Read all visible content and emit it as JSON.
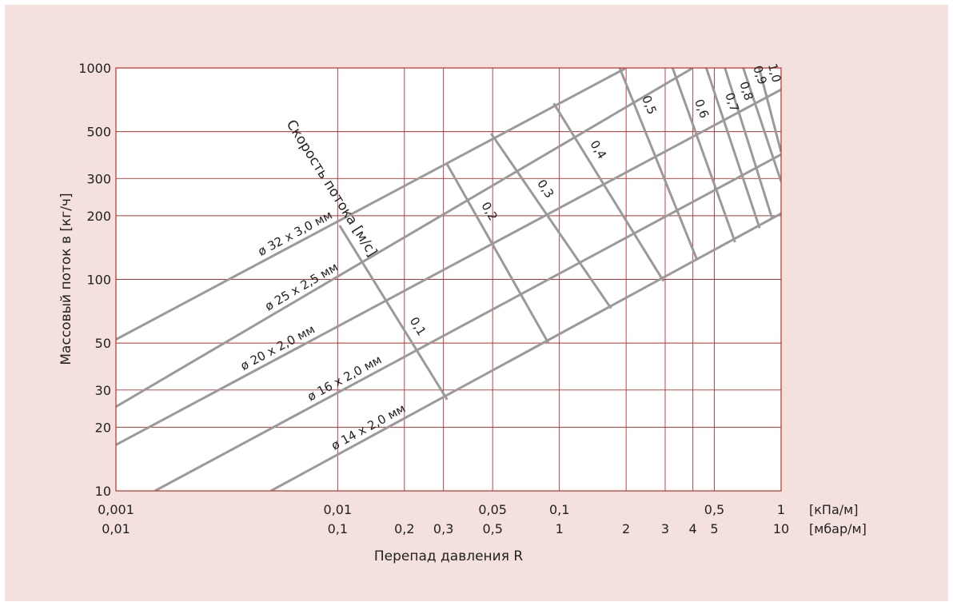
{
  "chart_data": {
    "type": "line",
    "xscale": "log",
    "yscale": "log",
    "xlim": [
      0.001,
      1
    ],
    "ylim": [
      10,
      1000
    ],
    "ylabel": "Массовый поток в [кг/ч]",
    "xlabel": "Перепад давления R",
    "velocity_axis_label": "Скорость потока [м/с]",
    "x_units": {
      "kpa": "[кПа/м]",
      "mbar": "[мбар/м]"
    },
    "y_ticks": [
      {
        "v": 10,
        "label": "10"
      },
      {
        "v": 20,
        "label": "20"
      },
      {
        "v": 30,
        "label": "30"
      },
      {
        "v": 50,
        "label": "50"
      },
      {
        "v": 100,
        "label": "100"
      },
      {
        "v": 200,
        "label": "200"
      },
      {
        "v": 300,
        "label": "300"
      },
      {
        "v": 500,
        "label": "500"
      },
      {
        "v": 1000,
        "label": "1000"
      }
    ],
    "x_ticks": [
      {
        "v": 0.001,
        "kpa": "0,001",
        "mbar": "0,01"
      },
      {
        "v": 0.01,
        "kpa": "0,01",
        "mbar": "0,1"
      },
      {
        "v": 0.02,
        "kpa": "",
        "mbar": "0,2"
      },
      {
        "v": 0.03,
        "kpa": "",
        "mbar": "0,3"
      },
      {
        "v": 0.05,
        "kpa": "0,05",
        "mbar": "0,5"
      },
      {
        "v": 0.1,
        "kpa": "0,1",
        "mbar": "1"
      },
      {
        "v": 0.2,
        "kpa": "",
        "mbar": "2"
      },
      {
        "v": 0.3,
        "kpa": "",
        "mbar": "3"
      },
      {
        "v": 0.4,
        "kpa": "",
        "mbar": "4"
      },
      {
        "v": 0.5,
        "kpa": "0,5",
        "mbar": "5"
      },
      {
        "v": 1,
        "kpa": "1",
        "mbar": "10"
      }
    ],
    "pipes": [
      {
        "label": "ø 32 x 3,0 мм",
        "points": [
          [
            0.001,
            52
          ],
          [
            0.2,
            1000
          ]
        ]
      },
      {
        "label": "ø 25 x 2,5 мм",
        "points": [
          [
            0.001,
            25
          ],
          [
            0.4,
            1000
          ]
        ]
      },
      {
        "label": "ø 20 x 2,0 мм",
        "points": [
          [
            0.001,
            16.5
          ],
          [
            1,
            790
          ]
        ]
      },
      {
        "label": "ø 16 x 2,0 мм",
        "points": [
          [
            0.0015,
            10
          ],
          [
            1,
            390
          ]
        ]
      },
      {
        "label": "ø 14 x 2,0 мм",
        "points": [
          [
            0.005,
            10
          ],
          [
            1,
            205
          ]
        ]
      }
    ],
    "velocities": [
      {
        "label": "0,1",
        "points": [
          [
            0.0102,
            180
          ],
          [
            0.0312,
            27
          ]
        ]
      },
      {
        "label": "0,2",
        "points": [
          [
            0.0312,
            350
          ],
          [
            0.0892,
            50
          ]
        ]
      },
      {
        "label": "0,3",
        "points": [
          [
            0.0492,
            490
          ],
          [
            0.171,
            73
          ]
        ]
      },
      {
        "label": "0,4",
        "points": [
          [
            0.0943,
            680
          ],
          [
            0.295,
            98
          ]
        ]
      },
      {
        "label": "0,5",
        "points": [
          [
            0.187,
            1000
          ],
          [
            0.416,
            125
          ]
        ]
      },
      {
        "label": "0,6",
        "points": [
          [
            0.324,
            1000
          ],
          [
            0.62,
            150
          ]
        ]
      },
      {
        "label": "0,7",
        "points": [
          [
            0.46,
            1000
          ],
          [
            0.8,
            175
          ]
        ]
      },
      {
        "label": "0,8",
        "points": [
          [
            0.558,
            1000
          ],
          [
            0.91,
            195
          ]
        ]
      },
      {
        "label": "0,9",
        "points": [
          [
            0.675,
            1000
          ],
          [
            1,
            290
          ]
        ]
      },
      {
        "label": "1,0",
        "points": [
          [
            0.796,
            1000
          ],
          [
            1,
            400
          ]
        ]
      }
    ]
  }
}
